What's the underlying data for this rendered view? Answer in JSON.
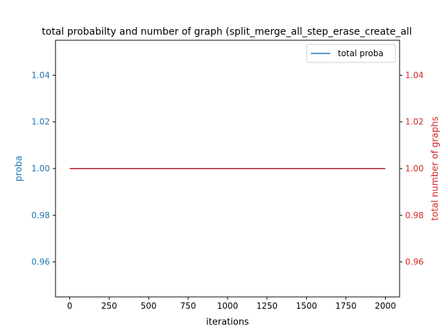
{
  "chart_data": {
    "type": "line",
    "title": "total probabilty and number of graph (split_merge_all_step_erase_create_all",
    "xlabel": "iterations",
    "ylabel": "proba",
    "ylabel_right": "total number of graphs",
    "xlim": [
      -90,
      2090
    ],
    "ylim": [
      0.945,
      1.055
    ],
    "ylim_right": [
      0.945,
      1.055
    ],
    "x_ticks": [
      0,
      250,
      500,
      750,
      1000,
      1250,
      1500,
      1750,
      2000
    ],
    "y_ticks": [
      0.96,
      0.98,
      1.0,
      1.02,
      1.04
    ],
    "y_ticks_right": [
      0.96,
      0.98,
      1.0,
      1.02,
      1.04
    ],
    "y_tick_labels": [
      "0.96",
      "0.98",
      "1.00",
      "1.02",
      "1.04"
    ],
    "y_tick_labels_right": [
      "0.96",
      "0.98",
      "1.00",
      "1.02",
      "1.04"
    ],
    "legend": {
      "placement": "top-right",
      "entries": [
        "total proba"
      ]
    },
    "grid": false,
    "series": [
      {
        "name": "total proba",
        "axis": "left",
        "color": "#1f77b4",
        "x": [
          0,
          2000
        ],
        "y": [
          1.0,
          1.0
        ]
      },
      {
        "axis": "right",
        "color": "#d62728",
        "x": [
          0,
          2000
        ],
        "y": [
          1.0,
          1.0
        ]
      }
    ],
    "colors": {
      "left_axis": "#1f77b4",
      "right_axis": "#d62728"
    }
  }
}
